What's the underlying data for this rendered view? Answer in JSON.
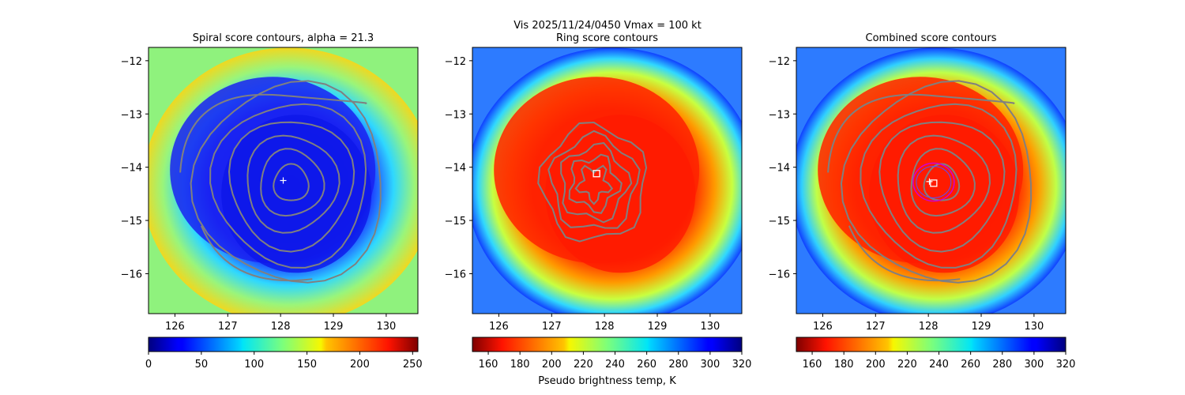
{
  "suptitle": "Vis  2025/11/24/0450    Vmax = 100 kt",
  "chart_data": [
    {
      "type": "heatmap",
      "title": "Spiral score contours, alpha = 21.3",
      "xlim": [
        125.5,
        130.6
      ],
      "ylim": [
        -16.75,
        -11.75
      ],
      "xticks": [
        "126",
        "127",
        "128",
        "129",
        "130"
      ],
      "yticks": [
        "−12",
        "−13",
        "−14",
        "−15",
        "−16"
      ],
      "colorbar": {
        "min": 0,
        "max": 255,
        "ticks": [
          "0",
          "50",
          "100",
          "150",
          "200",
          "250"
        ],
        "label": "",
        "colormap": "jet"
      },
      "center_marker": {
        "symbol": "+",
        "x": 128.05,
        "y": -14.25
      },
      "contours": "spiral score (gray)"
    },
    {
      "type": "heatmap",
      "title": "Ring score contours",
      "xlim": [
        125.5,
        130.6
      ],
      "ylim": [
        -16.75,
        -11.75
      ],
      "xticks": [
        "126",
        "127",
        "128",
        "129",
        "130"
      ],
      "yticks": [
        "−12",
        "−13",
        "−14",
        "−15",
        "−16"
      ],
      "colorbar": {
        "min": 150,
        "max": 320,
        "ticks": [
          "160",
          "180",
          "200",
          "220",
          "240",
          "260",
          "280",
          "300",
          "320"
        ],
        "label": "Pseudo brightness temp, K",
        "colormap": "jet_r"
      },
      "center_marker": {
        "symbol": "square",
        "x": 127.85,
        "y": -14.12
      },
      "contours": "ring score (gray)"
    },
    {
      "type": "heatmap",
      "title": "Combined score contours",
      "xlim": [
        125.5,
        130.6
      ],
      "ylim": [
        -16.75,
        -11.75
      ],
      "xticks": [
        "126",
        "127",
        "128",
        "129",
        "130"
      ],
      "yticks": [
        "−12",
        "−13",
        "−14",
        "−15",
        "−16"
      ],
      "colorbar": {
        "min": 150,
        "max": 320,
        "ticks": [
          "160",
          "180",
          "200",
          "220",
          "240",
          "260",
          "280",
          "300",
          "320"
        ],
        "label": "",
        "colormap": "jet_r"
      },
      "center_marker": {
        "symbol": "square",
        "x": 128.1,
        "y": -14.3
      },
      "plus_marker": {
        "x": 128.02,
        "y": -14.27
      },
      "circle": {
        "x": 128.1,
        "y": -14.28,
        "color": "#d000d0"
      },
      "contours": "combined score (gray)"
    }
  ]
}
